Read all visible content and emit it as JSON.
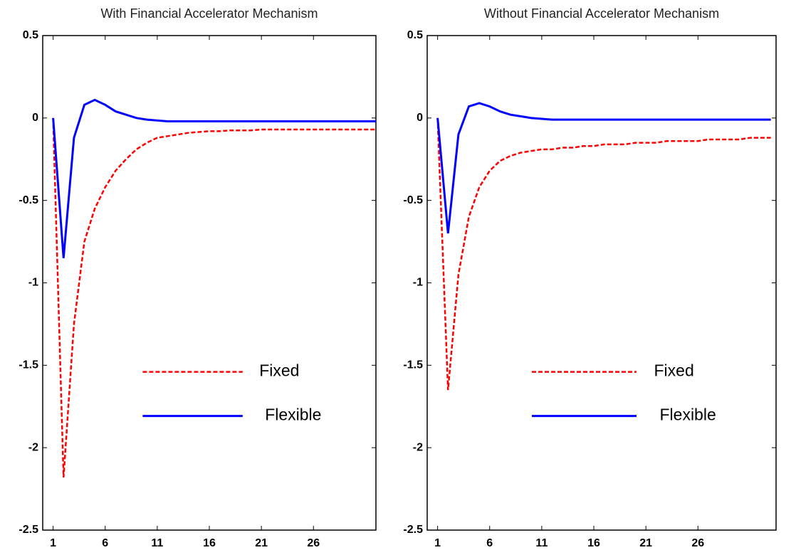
{
  "chart_data": [
    {
      "type": "line",
      "title": "With Financial Accelerator Mechanism",
      "x": [
        1,
        2,
        3,
        4,
        5,
        6,
        7,
        8,
        9,
        10,
        11,
        12,
        13,
        14,
        15,
        16,
        17,
        18,
        19,
        20,
        21,
        22,
        23,
        24,
        25,
        26,
        27,
        28,
        29,
        30,
        31,
        32
      ],
      "series": [
        {
          "name": "Fixed",
          "color": "#ff0000",
          "dashed": true,
          "values": [
            0,
            -2.18,
            -1.25,
            -0.75,
            -0.55,
            -0.42,
            -0.32,
            -0.25,
            -0.19,
            -0.15,
            -0.12,
            -0.11,
            -0.1,
            -0.09,
            -0.085,
            -0.08,
            -0.08,
            -0.075,
            -0.075,
            -0.075,
            -0.07,
            -0.07,
            -0.07,
            -0.07,
            -0.07,
            -0.07,
            -0.07,
            -0.07,
            -0.07,
            -0.07,
            -0.07,
            -0.07
          ]
        },
        {
          "name": "Flexible",
          "color": "#0000ff",
          "dashed": false,
          "values": [
            0,
            -0.85,
            -0.12,
            0.08,
            0.11,
            0.08,
            0.04,
            0.02,
            0,
            -0.01,
            -0.015,
            -0.02,
            -0.02,
            -0.02,
            -0.02,
            -0.02,
            -0.02,
            -0.02,
            -0.02,
            -0.02,
            -0.02,
            -0.02,
            -0.02,
            -0.02,
            -0.02,
            -0.02,
            -0.02,
            -0.02,
            -0.02,
            -0.02,
            -0.02,
            -0.02
          ]
        }
      ],
      "xlim": [
        0,
        32
      ],
      "ylim": [
        -2.5,
        0.5
      ],
      "xticks": [
        1,
        6,
        11,
        16,
        21,
        26
      ],
      "yticks": [
        0.5,
        0,
        -0.5,
        -1,
        -1.5,
        -2,
        -2.5
      ]
    },
    {
      "type": "line",
      "title": "Without Financial Accelerator Mechanism",
      "x": [
        1,
        2,
        3,
        4,
        5,
        6,
        7,
        8,
        9,
        10,
        11,
        12,
        13,
        14,
        15,
        16,
        17,
        18,
        19,
        20,
        21,
        22,
        23,
        24,
        25,
        26,
        27,
        28,
        29,
        30,
        31,
        32,
        33
      ],
      "series": [
        {
          "name": "Fixed",
          "color": "#ff0000",
          "dashed": true,
          "values": [
            0,
            -1.65,
            -0.95,
            -0.6,
            -0.42,
            -0.32,
            -0.26,
            -0.23,
            -0.21,
            -0.2,
            -0.19,
            -0.19,
            -0.18,
            -0.18,
            -0.17,
            -0.17,
            -0.16,
            -0.16,
            -0.16,
            -0.15,
            -0.15,
            -0.15,
            -0.14,
            -0.14,
            -0.14,
            -0.14,
            -0.13,
            -0.13,
            -0.13,
            -0.13,
            -0.12,
            -0.12,
            -0.12
          ]
        },
        {
          "name": "Flexible",
          "color": "#0000ff",
          "dashed": false,
          "values": [
            0,
            -0.7,
            -0.1,
            0.07,
            0.09,
            0.07,
            0.04,
            0.02,
            0.01,
            0,
            -0.005,
            -0.01,
            -0.01,
            -0.01,
            -0.01,
            -0.01,
            -0.01,
            -0.01,
            -0.01,
            -0.01,
            -0.01,
            -0.01,
            -0.01,
            -0.01,
            -0.01,
            -0.01,
            -0.01,
            -0.01,
            -0.01,
            -0.01,
            -0.01,
            -0.01,
            -0.01
          ]
        }
      ],
      "xlim": [
        0,
        33.5
      ],
      "ylim": [
        -2.5,
        0.5
      ],
      "xticks": [
        1,
        6,
        11,
        16,
        21,
        26
      ],
      "yticks": [
        0.5,
        0,
        -0.5,
        -1,
        -1.5,
        -2,
        -2.5
      ]
    }
  ]
}
